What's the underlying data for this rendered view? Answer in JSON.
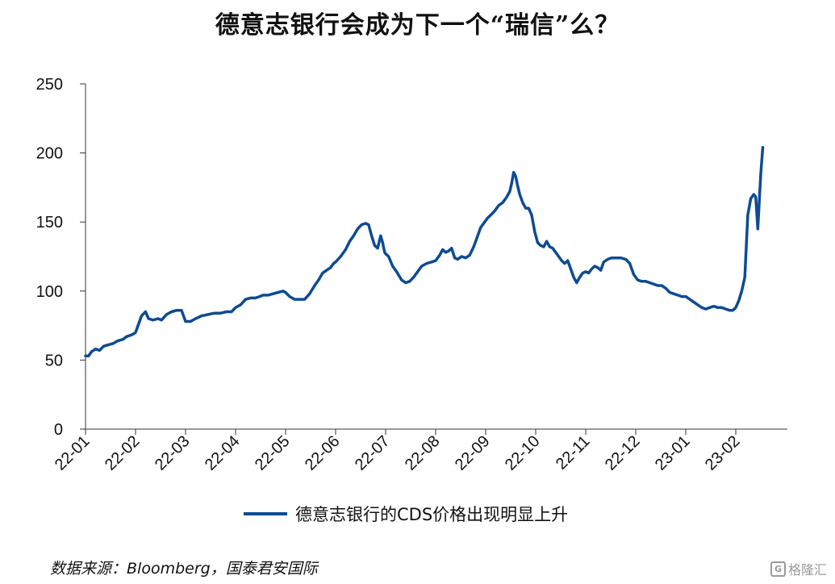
{
  "chart_data": {
    "type": "line",
    "title": "德意志银行会成为下一个“瑞信”么？",
    "xlabel": "",
    "ylabel": "",
    "ylim": [
      0,
      250
    ],
    "yticks": [
      "0",
      "50",
      "100",
      "150",
      "200",
      "250"
    ],
    "x_tick_labels": [
      "22-01",
      "22-02",
      "22-03",
      "22-04",
      "22-05",
      "22-06",
      "22-07",
      "22-08",
      "22-09",
      "22-10",
      "22-11",
      "22-12",
      "23-01",
      "23-02"
    ],
    "grid": false,
    "legend_position": "bottom",
    "series": [
      {
        "name": "德意志银行的CDS价格出现明显上升",
        "color": "#0d4b94",
        "points": [
          [
            0.0,
            53
          ],
          [
            0.06,
            53
          ],
          [
            0.12,
            56
          ],
          [
            0.2,
            58
          ],
          [
            0.28,
            57
          ],
          [
            0.36,
            60
          ],
          [
            0.45,
            61
          ],
          [
            0.55,
            62
          ],
          [
            0.65,
            64
          ],
          [
            0.75,
            65
          ],
          [
            0.82,
            67
          ],
          [
            0.9,
            68
          ],
          [
            0.96,
            69
          ],
          [
            1.0,
            70
          ],
          [
            1.05,
            75
          ],
          [
            1.12,
            82
          ],
          [
            1.2,
            85
          ],
          [
            1.26,
            80
          ],
          [
            1.35,
            79
          ],
          [
            1.45,
            80
          ],
          [
            1.52,
            79
          ],
          [
            1.62,
            83
          ],
          [
            1.72,
            85
          ],
          [
            1.82,
            86
          ],
          [
            1.92,
            86
          ],
          [
            2.0,
            78
          ],
          [
            2.1,
            78
          ],
          [
            2.2,
            80
          ],
          [
            2.32,
            82
          ],
          [
            2.45,
            83
          ],
          [
            2.58,
            84
          ],
          [
            2.7,
            84
          ],
          [
            2.82,
            85
          ],
          [
            2.92,
            85
          ],
          [
            3.0,
            88
          ],
          [
            3.1,
            90
          ],
          [
            3.2,
            94
          ],
          [
            3.3,
            95
          ],
          [
            3.4,
            95
          ],
          [
            3.48,
            96
          ],
          [
            3.55,
            97
          ],
          [
            3.65,
            97
          ],
          [
            3.75,
            98
          ],
          [
            3.85,
            99
          ],
          [
            3.95,
            100
          ],
          [
            4.0,
            99
          ],
          [
            4.08,
            96
          ],
          [
            4.18,
            94
          ],
          [
            4.28,
            94
          ],
          [
            4.38,
            94
          ],
          [
            4.48,
            98
          ],
          [
            4.58,
            104
          ],
          [
            4.66,
            108
          ],
          [
            4.74,
            113
          ],
          [
            4.82,
            115
          ],
          [
            4.9,
            117
          ],
          [
            4.96,
            120
          ],
          [
            5.0,
            121
          ],
          [
            5.1,
            125
          ],
          [
            5.2,
            130
          ],
          [
            5.28,
            136
          ],
          [
            5.36,
            140
          ],
          [
            5.44,
            145
          ],
          [
            5.52,
            148
          ],
          [
            5.6,
            149
          ],
          [
            5.66,
            148
          ],
          [
            5.72,
            140
          ],
          [
            5.78,
            133
          ],
          [
            5.84,
            131
          ],
          [
            5.9,
            140
          ],
          [
            5.94,
            135
          ],
          [
            5.98,
            128
          ],
          [
            6.0,
            127
          ],
          [
            6.06,
            125
          ],
          [
            6.14,
            118
          ],
          [
            6.22,
            114
          ],
          [
            6.32,
            108
          ],
          [
            6.4,
            106
          ],
          [
            6.48,
            107
          ],
          [
            6.56,
            110
          ],
          [
            6.64,
            114
          ],
          [
            6.72,
            118
          ],
          [
            6.82,
            120
          ],
          [
            6.92,
            121
          ],
          [
            7.0,
            122
          ],
          [
            7.08,
            126
          ],
          [
            7.14,
            130
          ],
          [
            7.2,
            128
          ],
          [
            7.26,
            129
          ],
          [
            7.32,
            131
          ],
          [
            7.38,
            124
          ],
          [
            7.44,
            123
          ],
          [
            7.52,
            125
          ],
          [
            7.6,
            124
          ],
          [
            7.68,
            126
          ],
          [
            7.76,
            132
          ],
          [
            7.84,
            140
          ],
          [
            7.9,
            146
          ],
          [
            7.98,
            150
          ],
          [
            8.04,
            153
          ],
          [
            8.1,
            155
          ],
          [
            8.18,
            158
          ],
          [
            8.26,
            162
          ],
          [
            8.34,
            164
          ],
          [
            8.42,
            168
          ],
          [
            8.48,
            172
          ],
          [
            8.52,
            178
          ],
          [
            8.56,
            186
          ],
          [
            8.6,
            183
          ],
          [
            8.64,
            176
          ],
          [
            8.68,
            170
          ],
          [
            8.74,
            164
          ],
          [
            8.8,
            160
          ],
          [
            8.86,
            160
          ],
          [
            8.92,
            155
          ],
          [
            8.98,
            143
          ],
          [
            9.04,
            135
          ],
          [
            9.1,
            133
          ],
          [
            9.16,
            132
          ],
          [
            9.22,
            136
          ],
          [
            9.28,
            132
          ],
          [
            9.34,
            131
          ],
          [
            9.4,
            128
          ],
          [
            9.46,
            125
          ],
          [
            9.52,
            122
          ],
          [
            9.58,
            120
          ],
          [
            9.64,
            122
          ],
          [
            9.7,
            116
          ],
          [
            9.76,
            110
          ],
          [
            9.82,
            106
          ],
          [
            9.88,
            110
          ],
          [
            9.94,
            113
          ],
          [
            10.0,
            114
          ],
          [
            10.06,
            113
          ],
          [
            10.12,
            116
          ],
          [
            10.18,
            118
          ],
          [
            10.24,
            117
          ],
          [
            10.3,
            115
          ],
          [
            10.36,
            121
          ],
          [
            10.44,
            123
          ],
          [
            10.52,
            124
          ],
          [
            10.6,
            124
          ],
          [
            10.7,
            124
          ],
          [
            10.8,
            123
          ],
          [
            10.88,
            120
          ],
          [
            10.96,
            112
          ],
          [
            11.04,
            108
          ],
          [
            11.12,
            107
          ],
          [
            11.2,
            107
          ],
          [
            11.28,
            106
          ],
          [
            11.36,
            105
          ],
          [
            11.44,
            104
          ],
          [
            11.52,
            104
          ],
          [
            11.6,
            102
          ],
          [
            11.68,
            99
          ],
          [
            11.76,
            98
          ],
          [
            11.84,
            97
          ],
          [
            11.92,
            96
          ],
          [
            12.0,
            96
          ],
          [
            12.08,
            94
          ],
          [
            12.16,
            92
          ],
          [
            12.24,
            90
          ],
          [
            12.32,
            88
          ],
          [
            12.4,
            87
          ],
          [
            12.48,
            88
          ],
          [
            12.56,
            89
          ],
          [
            12.64,
            88
          ],
          [
            12.72,
            88
          ],
          [
            12.8,
            87
          ],
          [
            12.88,
            86
          ],
          [
            12.94,
            86
          ],
          [
            13.0,
            88
          ],
          [
            13.06,
            93
          ],
          [
            13.12,
            100
          ],
          [
            13.18,
            110
          ],
          [
            13.24,
            155
          ],
          [
            13.3,
            167
          ],
          [
            13.36,
            170
          ],
          [
            13.4,
            168
          ],
          [
            13.44,
            145
          ],
          [
            13.5,
            185
          ],
          [
            13.54,
            204
          ]
        ]
      }
    ]
  },
  "source_text": "数据来源：Bloomberg，国泰君安国际",
  "watermark": {
    "box": "G",
    "text": "格隆汇"
  }
}
